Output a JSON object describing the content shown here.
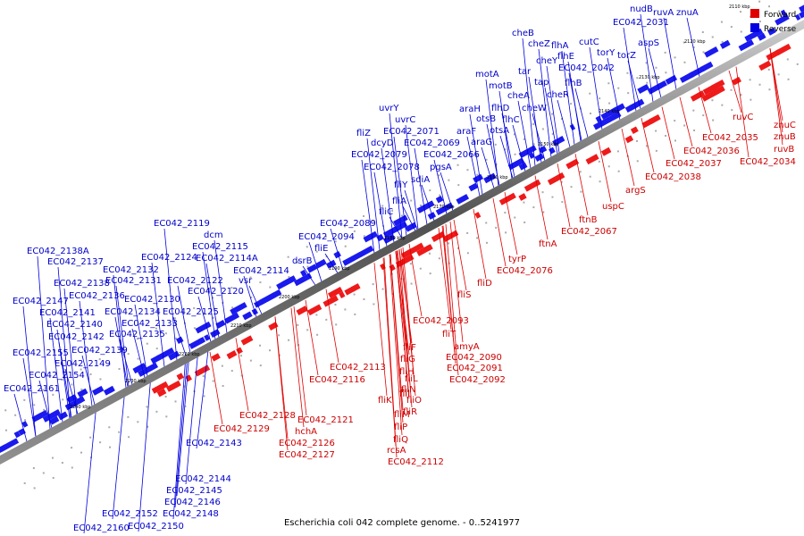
{
  "caption": "Escherichia coli 042 complete genome. - 0..5241977",
  "legend": {
    "forward_label": "Forward",
    "reverse_label": "Reverse",
    "forward_color": "#e00000",
    "reverse_color": "#0000e0"
  },
  "ticks": [
    "2110 kbp",
    "2120 kbp",
    "2130 kbp",
    "2140 kbp",
    "2150 kbp",
    "2160 kbp",
    "2170 kbp",
    "2180 kbp",
    "2190 kbp",
    "2200 kbp",
    "2210 kbp",
    "2220 kbp",
    "2230 kbp",
    "2240 kbp"
  ],
  "reverse_labels": [
    "nudB",
    "ruvA",
    "znuA",
    "EC042_2031",
    "cheB",
    "aspS",
    "cheZ",
    "flhA",
    "cutC",
    "cheY",
    "flhE",
    "torY",
    "torZ",
    "EC042_2042",
    "flhB",
    "motA",
    "tar",
    "tap",
    "motB",
    "cheR",
    "araH",
    "flhD",
    "cheA",
    "cheW",
    "otsB",
    "flhC",
    "uvrY",
    "araF",
    "otsA",
    "uvrC",
    "fliZ",
    "EC042_2071",
    "araG",
    "dcyD",
    "EC042_2069",
    "EC042_2066",
    "EC042_2079",
    "EC042_2078",
    "pgsA",
    "sdiA",
    "fliY",
    "fliA",
    "fliC",
    "EC042_2119",
    "EC042_2089",
    "dcm",
    "EC042_2115",
    "EC042_2094",
    "fliE",
    "EC042_2138A",
    "EC042_2124",
    "EC042_2114A",
    "dsrB",
    "EC042_2137",
    "EC042_2132",
    "EC042_2114",
    "vsr",
    "EC042_2138",
    "EC042_2131",
    "EC042_2122",
    "EC042_2136",
    "EC042_2120",
    "EC042_2147",
    "EC042_2130",
    "EC042_2141",
    "EC042_2134",
    "EC042_2125",
    "EC042_2140",
    "EC042_2133",
    "EC042_2142",
    "EC042_2135",
    "EC042_2155",
    "EC042_2139",
    "EC042_2149",
    "EC042_2154",
    "EC042_2161",
    "EC042_2143",
    "EC042_2144",
    "EC042_2145",
    "EC042_2146",
    "EC042_2152",
    "EC042_2148",
    "EC042_2160",
    "EC042_2150"
  ],
  "forward_labels": [
    "ruvC",
    "znuC",
    "znuB",
    "EC042_2035",
    "ruvB",
    "EC042_2036",
    "EC042_2034",
    "EC042_2037",
    "EC042_2038",
    "argS",
    "uspC",
    "ftnB",
    "EC042_2067",
    "ftnA",
    "tyrP",
    "EC042_2076",
    "fliD",
    "fliS",
    "EC042_2093",
    "fliT",
    "amyA",
    "fliF",
    "EC042_2090",
    "fliG",
    "EC042_2091",
    "EC042_2113",
    "fliH",
    "EC042_2092",
    "EC042_2116",
    "fliL",
    "fliI",
    "fliN",
    "fliJ",
    "fliO",
    "fliK",
    "fliR",
    "fliM",
    "fliP",
    "fliQ",
    "rcsA",
    "EC042_2112",
    "EC042_2128",
    "EC042_2121",
    "EC042_2129",
    "hchA",
    "EC042_2126",
    "EC042_2127"
  ]
}
